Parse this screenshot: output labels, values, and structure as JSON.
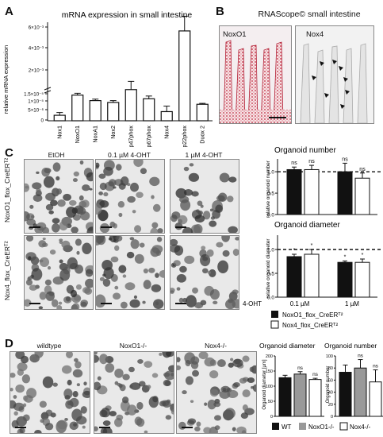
{
  "panelA": {
    "letter": "A",
    "title": "mRNA expression in small intestine",
    "ylabel": "relative mRNA expression",
    "ytick_labels": [
      "6×10⁻³",
      "4×10⁻³",
      "2×10⁻³",
      "1.5×10⁻⁵",
      "1×10⁻⁵",
      "5×10⁻⁶",
      "0"
    ],
    "chart_data": {
      "type": "bar",
      "categories": [
        "Nox1",
        "NoxO1",
        "NoxA1",
        "Nox2",
        "p47phox",
        "p67phox",
        "Nox4",
        "p22phox",
        "Duox 2"
      ],
      "values": [
        0.3,
        1.4,
        1.1,
        1.0,
        1.7,
        1.2,
        0.5,
        4.9,
        0.9
      ],
      "errors": [
        0.15,
        0.1,
        0.08,
        0.1,
        0.45,
        0.15,
        0.3,
        0.8,
        0.05
      ],
      "ylabel": "relative mRNA expression",
      "ylim": [
        0,
        6
      ]
    }
  },
  "panelB": {
    "letter": "B",
    "title": "RNAScope© small intestine",
    "left_label": "NoxO1",
    "right_label": "Nox4"
  },
  "panelC": {
    "letter": "C",
    "col_labels": [
      "EtOH",
      "0.1 µM 4-OHT",
      "1 µM 4-OHT"
    ],
    "row_labels": [
      "NoxO1_flox_CreERᵀ²",
      "Nox4_flox_CreERᵀ²"
    ],
    "chart_number": {
      "title": "Organoid number",
      "ylabel": "relative organoid number",
      "chart_data": {
        "type": "bar",
        "groups": [
          "0.1 µM",
          "1 µM"
        ],
        "series": [
          {
            "name": "NoxO1_flox_CreERT2",
            "color": "#111111",
            "values": [
              1.05,
              1.0
            ],
            "errors": [
              0.06,
              0.2
            ]
          },
          {
            "name": "Nox4_flox_CreERT2",
            "color": "#ffffff",
            "values": [
              1.05,
              0.85
            ],
            "errors": [
              0.1,
              0.12
            ]
          }
        ],
        "significance": [
          [
            "ns",
            "ns"
          ],
          [
            "ns",
            "ns"
          ]
        ],
        "ylim": [
          0,
          1.3
        ],
        "reference_line": 1.0,
        "ytick_labels": [
          "0.0",
          "0.5",
          "1.0"
        ]
      }
    },
    "chart_diameter": {
      "title": "Organoid diameter",
      "ylabel": "relative organoid diameter",
      "chart_data": {
        "type": "bar",
        "groups": [
          "0.1 µM",
          "1 µM"
        ],
        "series": [
          {
            "name": "NoxO1_flox_CreERT2",
            "color": "#111111",
            "values": [
              0.85,
              0.73
            ],
            "errors": [
              0.05,
              0.03
            ]
          },
          {
            "name": "Nox4_flox_CreERT2",
            "color": "#ffffff",
            "values": [
              0.9,
              0.73
            ],
            "errors": [
              0.1,
              0.07
            ]
          }
        ],
        "significance": [
          [
            "*",
            "*"
          ],
          [
            "*",
            "*"
          ]
        ],
        "ylim": [
          0,
          1.3
        ],
        "reference_line": 1.0,
        "ytick_labels": [
          "0.0",
          "0.5",
          "1.0"
        ]
      }
    },
    "xprefix": "4-OHT",
    "legend": [
      "NoxO1_flox_CreERᵀ²",
      "Nox4_flox_CreERᵀ²"
    ]
  },
  "panelD": {
    "letter": "D",
    "col_labels": [
      "wildtype",
      "NoxO1-/-",
      "Nox4-/-"
    ],
    "chart_diameter": {
      "title": "Organoid diameter",
      "ylabel": "Organoid diameter [µm]",
      "chart_data": {
        "type": "bar",
        "categories": [
          "WT",
          "NoxO1-/-",
          "Nox4-/-"
        ],
        "values": [
          128,
          140,
          122
        ],
        "errors": [
          8,
          8,
          4
        ],
        "colors": [
          "#111111",
          "#999999",
          "#ffffff"
        ],
        "significance": [
          "",
          "ns",
          "ns"
        ],
        "ylim": [
          0,
          200
        ],
        "ytick_labels": [
          "0",
          "50",
          "100",
          "150",
          "200"
        ]
      }
    },
    "chart_number": {
      "title": "Organoid number",
      "ylabel": "Organoid number",
      "chart_data": {
        "type": "bar",
        "categories": [
          "WT",
          "NoxO1-/-",
          "Nox4-/-"
        ],
        "values": [
          73,
          80,
          57
        ],
        "errors": [
          12,
          14,
          20
        ],
        "colors": [
          "#111111",
          "#999999",
          "#ffffff"
        ],
        "significance": [
          "",
          "ns",
          "ns"
        ],
        "ylim": [
          0,
          100
        ],
        "ytick_labels": [
          "0",
          "20",
          "40",
          "60",
          "80",
          "100"
        ]
      }
    },
    "legend": [
      "WT",
      "NoxO1-/-",
      "Nox4-/-"
    ]
  }
}
